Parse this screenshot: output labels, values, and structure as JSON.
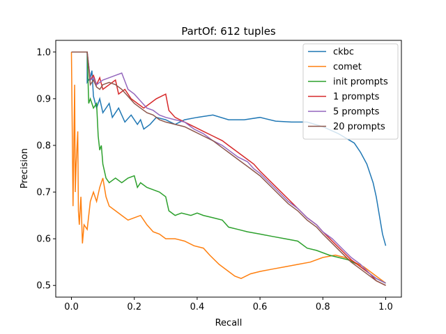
{
  "chart_data": {
    "type": "line",
    "title": "PartOf: 612 tuples",
    "xlabel": "Recall",
    "ylabel": "Precision",
    "xlim": [
      -0.05,
      1.05
    ],
    "ylim": [
      0.475,
      1.025
    ],
    "xticks": [
      0.0,
      0.2,
      0.4,
      0.6,
      0.8,
      1.0
    ],
    "xtick_labels": [
      "0.0",
      "0.2",
      "0.4",
      "0.6",
      "0.8",
      "1.0"
    ],
    "yticks": [
      0.5,
      0.6,
      0.7,
      0.8,
      0.9,
      1.0
    ],
    "ytick_labels": [
      "0.5",
      "0.6",
      "0.7",
      "0.8",
      "0.9",
      "1.0"
    ],
    "grid": false,
    "legend_position": "top-right",
    "series": [
      {
        "name": "ckbc",
        "color": "#1f77b4",
        "points": [
          [
            0.0,
            1.0
          ],
          [
            0.05,
            1.0
          ],
          [
            0.05,
            0.935
          ],
          [
            0.06,
            0.945
          ],
          [
            0.065,
            0.96
          ],
          [
            0.07,
            0.905
          ],
          [
            0.08,
            0.88
          ],
          [
            0.09,
            0.9
          ],
          [
            0.1,
            0.87
          ],
          [
            0.12,
            0.89
          ],
          [
            0.13,
            0.86
          ],
          [
            0.15,
            0.88
          ],
          [
            0.17,
            0.85
          ],
          [
            0.19,
            0.865
          ],
          [
            0.21,
            0.845
          ],
          [
            0.22,
            0.855
          ],
          [
            0.23,
            0.835
          ],
          [
            0.25,
            0.845
          ],
          [
            0.27,
            0.86
          ],
          [
            0.3,
            0.855
          ],
          [
            0.33,
            0.845
          ],
          [
            0.36,
            0.855
          ],
          [
            0.4,
            0.86
          ],
          [
            0.45,
            0.865
          ],
          [
            0.5,
            0.855
          ],
          [
            0.55,
            0.855
          ],
          [
            0.6,
            0.86
          ],
          [
            0.65,
            0.852
          ],
          [
            0.7,
            0.85
          ],
          [
            0.75,
            0.85
          ],
          [
            0.8,
            0.84
          ],
          [
            0.85,
            0.825
          ],
          [
            0.9,
            0.805
          ],
          [
            0.92,
            0.785
          ],
          [
            0.94,
            0.76
          ],
          [
            0.96,
            0.72
          ],
          [
            0.97,
            0.69
          ],
          [
            0.98,
            0.65
          ],
          [
            0.99,
            0.61
          ],
          [
            1.0,
            0.585
          ]
        ]
      },
      {
        "name": "comet",
        "color": "#ff7f0e",
        "points": [
          [
            0.0,
            1.0
          ],
          [
            0.005,
            0.67
          ],
          [
            0.01,
            0.93
          ],
          [
            0.012,
            0.7
          ],
          [
            0.015,
            0.76
          ],
          [
            0.02,
            0.83
          ],
          [
            0.022,
            0.66
          ],
          [
            0.025,
            0.63
          ],
          [
            0.03,
            0.69
          ],
          [
            0.035,
            0.59
          ],
          [
            0.04,
            0.63
          ],
          [
            0.05,
            0.62
          ],
          [
            0.06,
            0.68
          ],
          [
            0.07,
            0.7
          ],
          [
            0.08,
            0.68
          ],
          [
            0.09,
            0.71
          ],
          [
            0.1,
            0.73
          ],
          [
            0.11,
            0.69
          ],
          [
            0.12,
            0.67
          ],
          [
            0.14,
            0.66
          ],
          [
            0.16,
            0.65
          ],
          [
            0.18,
            0.64
          ],
          [
            0.2,
            0.645
          ],
          [
            0.22,
            0.65
          ],
          [
            0.24,
            0.63
          ],
          [
            0.26,
            0.615
          ],
          [
            0.28,
            0.61
          ],
          [
            0.3,
            0.6
          ],
          [
            0.33,
            0.6
          ],
          [
            0.36,
            0.595
          ],
          [
            0.39,
            0.585
          ],
          [
            0.42,
            0.58
          ],
          [
            0.44,
            0.565
          ],
          [
            0.47,
            0.545
          ],
          [
            0.5,
            0.53
          ],
          [
            0.52,
            0.52
          ],
          [
            0.54,
            0.515
          ],
          [
            0.57,
            0.525
          ],
          [
            0.6,
            0.53
          ],
          [
            0.64,
            0.535
          ],
          [
            0.68,
            0.54
          ],
          [
            0.72,
            0.545
          ],
          [
            0.76,
            0.55
          ],
          [
            0.8,
            0.56
          ],
          [
            0.84,
            0.565
          ],
          [
            0.87,
            0.56
          ],
          [
            0.9,
            0.55
          ],
          [
            0.93,
            0.54
          ],
          [
            0.96,
            0.525
          ],
          [
            0.98,
            0.515
          ],
          [
            1.0,
            0.505
          ]
        ]
      },
      {
        "name": "init prompts",
        "color": "#2ca02c",
        "points": [
          [
            0.0,
            1.0
          ],
          [
            0.05,
            1.0
          ],
          [
            0.055,
            0.89
          ],
          [
            0.06,
            0.9
          ],
          [
            0.07,
            0.88
          ],
          [
            0.08,
            0.89
          ],
          [
            0.085,
            0.82
          ],
          [
            0.09,
            0.79
          ],
          [
            0.095,
            0.8
          ],
          [
            0.1,
            0.76
          ],
          [
            0.11,
            0.73
          ],
          [
            0.12,
            0.72
          ],
          [
            0.14,
            0.73
          ],
          [
            0.16,
            0.72
          ],
          [
            0.18,
            0.73
          ],
          [
            0.2,
            0.735
          ],
          [
            0.21,
            0.71
          ],
          [
            0.22,
            0.72
          ],
          [
            0.24,
            0.71
          ],
          [
            0.26,
            0.705
          ],
          [
            0.28,
            0.7
          ],
          [
            0.3,
            0.69
          ],
          [
            0.31,
            0.66
          ],
          [
            0.33,
            0.65
          ],
          [
            0.35,
            0.655
          ],
          [
            0.38,
            0.65
          ],
          [
            0.4,
            0.655
          ],
          [
            0.42,
            0.65
          ],
          [
            0.45,
            0.645
          ],
          [
            0.48,
            0.64
          ],
          [
            0.5,
            0.625
          ],
          [
            0.53,
            0.62
          ],
          [
            0.56,
            0.615
          ],
          [
            0.6,
            0.61
          ],
          [
            0.64,
            0.605
          ],
          [
            0.68,
            0.6
          ],
          [
            0.72,
            0.595
          ],
          [
            0.75,
            0.58
          ],
          [
            0.78,
            0.575
          ],
          [
            0.82,
            0.565
          ],
          [
            0.85,
            0.56
          ],
          [
            0.88,
            0.555
          ],
          [
            0.91,
            0.545
          ],
          [
            0.94,
            0.53
          ],
          [
            0.97,
            0.515
          ],
          [
            1.0,
            0.505
          ]
        ]
      },
      {
        "name": "1 prompts",
        "color": "#d62728",
        "points": [
          [
            0.0,
            1.0
          ],
          [
            0.05,
            1.0
          ],
          [
            0.06,
            0.94
          ],
          [
            0.07,
            0.95
          ],
          [
            0.08,
            0.93
          ],
          [
            0.09,
            0.945
          ],
          [
            0.1,
            0.92
          ],
          [
            0.12,
            0.93
          ],
          [
            0.14,
            0.94
          ],
          [
            0.15,
            0.91
          ],
          [
            0.17,
            0.92
          ],
          [
            0.19,
            0.9
          ],
          [
            0.21,
            0.89
          ],
          [
            0.23,
            0.88
          ],
          [
            0.25,
            0.89
          ],
          [
            0.27,
            0.9
          ],
          [
            0.3,
            0.91
          ],
          [
            0.31,
            0.875
          ],
          [
            0.33,
            0.86
          ],
          [
            0.36,
            0.85
          ],
          [
            0.39,
            0.84
          ],
          [
            0.42,
            0.83
          ],
          [
            0.45,
            0.82
          ],
          [
            0.48,
            0.81
          ],
          [
            0.5,
            0.8
          ],
          [
            0.53,
            0.785
          ],
          [
            0.56,
            0.77
          ],
          [
            0.58,
            0.76
          ],
          [
            0.6,
            0.745
          ],
          [
            0.63,
            0.725
          ],
          [
            0.66,
            0.705
          ],
          [
            0.69,
            0.685
          ],
          [
            0.72,
            0.665
          ],
          [
            0.75,
            0.645
          ],
          [
            0.78,
            0.63
          ],
          [
            0.8,
            0.615
          ],
          [
            0.83,
            0.595
          ],
          [
            0.86,
            0.575
          ],
          [
            0.89,
            0.555
          ],
          [
            0.92,
            0.54
          ],
          [
            0.95,
            0.525
          ],
          [
            0.97,
            0.51
          ],
          [
            1.0,
            0.5
          ]
        ]
      },
      {
        "name": "5 prompts",
        "color": "#9467bd",
        "points": [
          [
            0.0,
            1.0
          ],
          [
            0.05,
            1.0
          ],
          [
            0.06,
            0.94
          ],
          [
            0.07,
            0.945
          ],
          [
            0.08,
            0.93
          ],
          [
            0.1,
            0.94
          ],
          [
            0.12,
            0.945
          ],
          [
            0.14,
            0.95
          ],
          [
            0.16,
            0.955
          ],
          [
            0.18,
            0.92
          ],
          [
            0.2,
            0.91
          ],
          [
            0.22,
            0.895
          ],
          [
            0.24,
            0.88
          ],
          [
            0.26,
            0.875
          ],
          [
            0.28,
            0.865
          ],
          [
            0.3,
            0.86
          ],
          [
            0.33,
            0.855
          ],
          [
            0.36,
            0.85
          ],
          [
            0.39,
            0.835
          ],
          [
            0.42,
            0.825
          ],
          [
            0.45,
            0.81
          ],
          [
            0.48,
            0.8
          ],
          [
            0.5,
            0.79
          ],
          [
            0.53,
            0.775
          ],
          [
            0.56,
            0.765
          ],
          [
            0.58,
            0.75
          ],
          [
            0.6,
            0.74
          ],
          [
            0.63,
            0.72
          ],
          [
            0.66,
            0.7
          ],
          [
            0.69,
            0.68
          ],
          [
            0.72,
            0.665
          ],
          [
            0.75,
            0.645
          ],
          [
            0.78,
            0.63
          ],
          [
            0.8,
            0.615
          ],
          [
            0.83,
            0.6
          ],
          [
            0.86,
            0.58
          ],
          [
            0.89,
            0.56
          ],
          [
            0.92,
            0.545
          ],
          [
            0.95,
            0.525
          ],
          [
            0.97,
            0.515
          ],
          [
            1.0,
            0.505
          ]
        ]
      },
      {
        "name": "20 prompts",
        "color": "#8c564b",
        "points": [
          [
            0.0,
            1.0
          ],
          [
            0.05,
            1.0
          ],
          [
            0.06,
            0.93
          ],
          [
            0.07,
            0.94
          ],
          [
            0.08,
            0.925
          ],
          [
            0.09,
            0.92
          ],
          [
            0.1,
            0.93
          ],
          [
            0.12,
            0.935
          ],
          [
            0.14,
            0.93
          ],
          [
            0.16,
            0.92
          ],
          [
            0.18,
            0.905
          ],
          [
            0.2,
            0.89
          ],
          [
            0.22,
            0.88
          ],
          [
            0.24,
            0.87
          ],
          [
            0.26,
            0.865
          ],
          [
            0.28,
            0.855
          ],
          [
            0.3,
            0.85
          ],
          [
            0.33,
            0.845
          ],
          [
            0.36,
            0.84
          ],
          [
            0.39,
            0.83
          ],
          [
            0.42,
            0.82
          ],
          [
            0.45,
            0.81
          ],
          [
            0.48,
            0.795
          ],
          [
            0.5,
            0.785
          ],
          [
            0.53,
            0.77
          ],
          [
            0.56,
            0.755
          ],
          [
            0.58,
            0.745
          ],
          [
            0.6,
            0.735
          ],
          [
            0.63,
            0.715
          ],
          [
            0.66,
            0.695
          ],
          [
            0.69,
            0.675
          ],
          [
            0.72,
            0.66
          ],
          [
            0.75,
            0.64
          ],
          [
            0.78,
            0.625
          ],
          [
            0.8,
            0.61
          ],
          [
            0.83,
            0.59
          ],
          [
            0.86,
            0.57
          ],
          [
            0.89,
            0.55
          ],
          [
            0.92,
            0.535
          ],
          [
            0.95,
            0.52
          ],
          [
            0.97,
            0.51
          ],
          [
            1.0,
            0.5
          ]
        ]
      }
    ]
  }
}
